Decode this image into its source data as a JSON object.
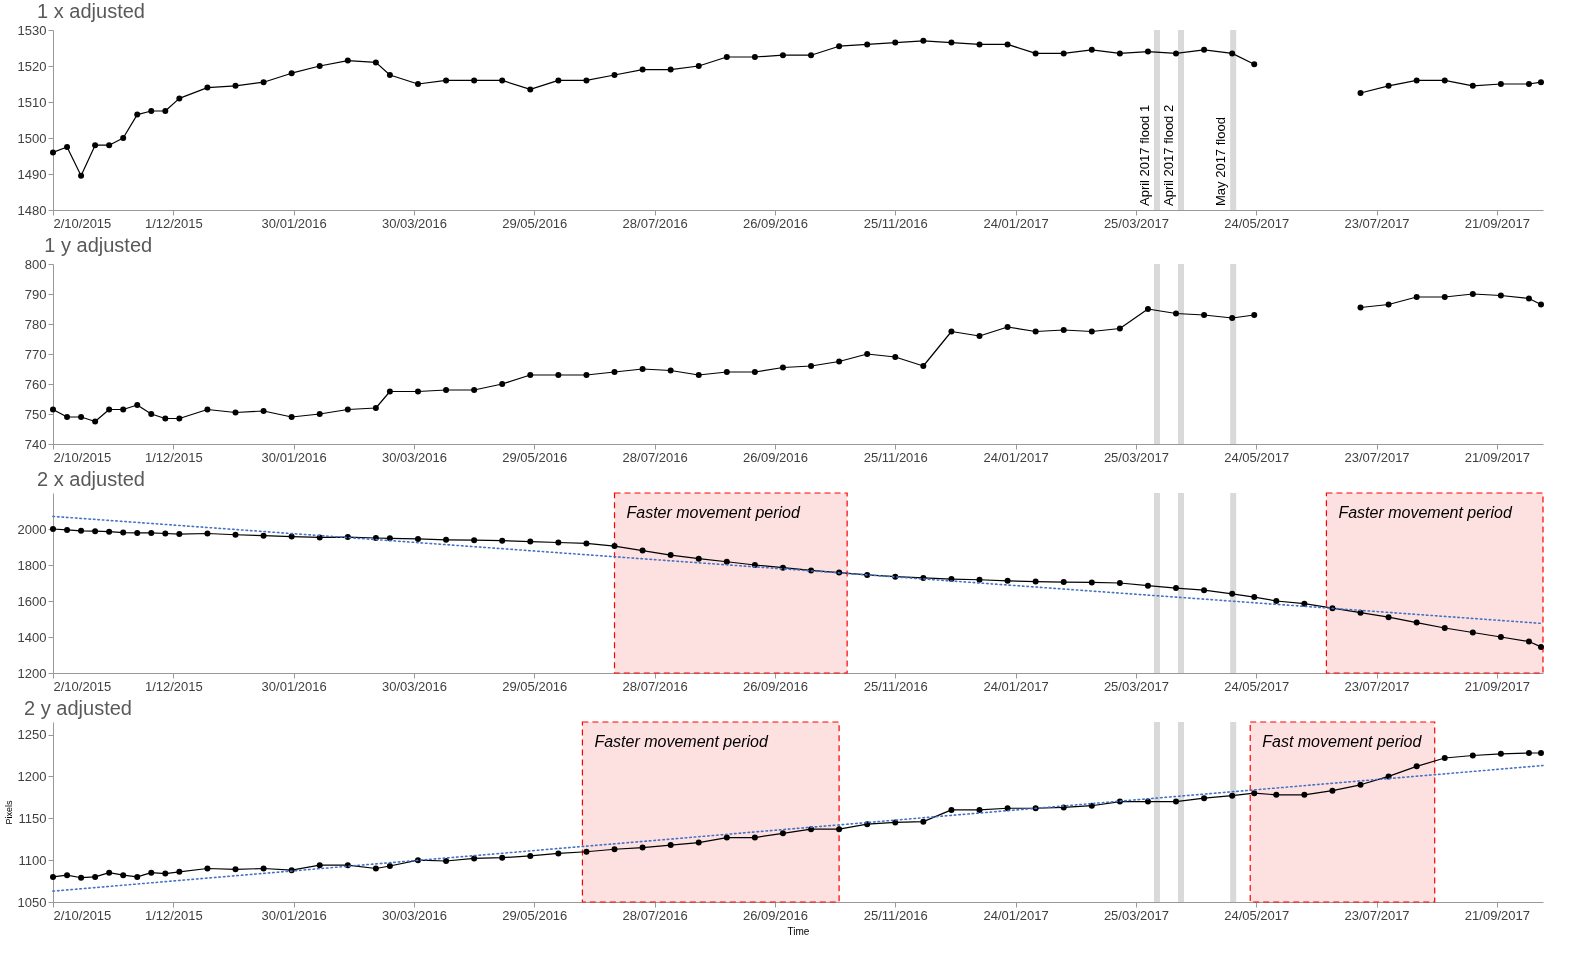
{
  "chart_data": [
    {
      "type": "line",
      "marker": "circle",
      "title": "1 x adjusted",
      "xlim": [
        "2015-10-02",
        "2017-10-14"
      ],
      "ylim": [
        1480,
        1530
      ],
      "yticks": [
        1480,
        1490,
        1500,
        1510,
        1520,
        1530
      ],
      "grid": false,
      "xticks": [
        {
          "value": "2015-10-02",
          "label": "2/10/2015"
        },
        {
          "value": "2015-12-01",
          "label": "1/12/2015"
        },
        {
          "value": "2016-01-30",
          "label": "30/01/2016"
        },
        {
          "value": "2016-03-30",
          "label": "30/03/2016"
        },
        {
          "value": "2016-05-29",
          "label": "29/05/2016"
        },
        {
          "value": "2016-07-28",
          "label": "28/07/2016"
        },
        {
          "value": "2016-09-26",
          "label": "26/09/2016"
        },
        {
          "value": "2016-11-25",
          "label": "25/11/2016"
        },
        {
          "value": "2017-01-24",
          "label": "24/01/2017"
        },
        {
          "value": "2017-03-25",
          "label": "25/03/2017"
        },
        {
          "value": "2017-05-24",
          "label": "24/05/2017"
        },
        {
          "value": "2017-07-23",
          "label": "23/07/2017"
        },
        {
          "value": "2017-09-21",
          "label": "21/09/2017"
        }
      ],
      "x": [
        "2015-10-02",
        "2015-10-09",
        "2015-10-16",
        "2015-10-23",
        "2015-10-30",
        "2015-11-06",
        "2015-11-13",
        "2015-11-20",
        "2015-11-27",
        "2015-12-04",
        "2015-12-18",
        "2016-01-01",
        "2016-01-15",
        "2016-01-29",
        "2016-02-12",
        "2016-02-26",
        "2016-03-11",
        "2016-03-18",
        "2016-04-01",
        "2016-04-15",
        "2016-04-29",
        "2016-05-13",
        "2016-05-27",
        "2016-06-10",
        "2016-06-24",
        "2016-07-08",
        "2016-07-22",
        "2016-08-05",
        "2016-08-19",
        "2016-09-02",
        "2016-09-16",
        "2016-09-30",
        "2016-10-14",
        "2016-10-28",
        "2016-11-11",
        "2016-11-25",
        "2016-12-09",
        "2016-12-23",
        "2017-01-06",
        "2017-01-20",
        "2017-02-03",
        "2017-02-17",
        "2017-03-03",
        "2017-03-17",
        "2017-03-31",
        "2017-04-14",
        "2017-04-28",
        "2017-05-12",
        "2017-05-23",
        "2017-06-14",
        "2017-07-15",
        "2017-07-29",
        "2017-08-12",
        "2017-08-26",
        "2017-09-09",
        "2017-09-23",
        "2017-10-07",
        "2017-10-13"
      ],
      "series": [
        {
          "color": "#000000",
          "values": [
            1496,
            1497.5,
            1489.5,
            1498,
            1498,
            1500,
            1506.5,
            1507.5,
            1507.5,
            1511,
            1514,
            1514.5,
            1515.5,
            1518,
            1520,
            1521.5,
            1521,
            1517.5,
            1515,
            1516,
            1516,
            1516,
            1513.5,
            1516,
            1516,
            1517.5,
            1519,
            1519,
            1520,
            1522.5,
            1522.5,
            1523,
            1523,
            1525.5,
            1526,
            1526.5,
            1527,
            1526.5,
            1526,
            1526,
            1523.5,
            1523.5,
            1524.5,
            1523.5,
            1524,
            1523.5,
            1524.5,
            1523.5,
            1520.5,
            null,
            1512.5,
            1514.5,
            1516,
            1516,
            1514.5,
            1515,
            1515,
            1515.5
          ]
        }
      ],
      "bands": [
        {
          "axis": "x",
          "from": "2017-04-03",
          "to": "2017-04-06",
          "color": "#d9d9d9",
          "label": "April 2017 flood 1"
        },
        {
          "axis": "x",
          "from": "2017-04-15",
          "to": "2017-04-18",
          "color": "#d9d9d9",
          "label": "April 2017 flood 2"
        },
        {
          "axis": "x",
          "from": "2017-05-11",
          "to": "2017-05-14",
          "color": "#d9d9d9",
          "label": "May 2017 flood"
        }
      ]
    },
    {
      "type": "line",
      "marker": "circle",
      "title": "1 y adjusted",
      "xlim": [
        "2015-10-02",
        "2017-10-14"
      ],
      "ylim": [
        740,
        800
      ],
      "yticks": [
        740,
        750,
        760,
        770,
        780,
        790,
        800
      ],
      "grid": false,
      "xticks": [
        {
          "value": "2015-10-02",
          "label": "2/10/2015"
        },
        {
          "value": "2015-12-01",
          "label": "1/12/2015"
        },
        {
          "value": "2016-01-30",
          "label": "30/01/2016"
        },
        {
          "value": "2016-03-30",
          "label": "30/03/2016"
        },
        {
          "value": "2016-05-29",
          "label": "29/05/2016"
        },
        {
          "value": "2016-07-28",
          "label": "28/07/2016"
        },
        {
          "value": "2016-09-26",
          "label": "26/09/2016"
        },
        {
          "value": "2016-11-25",
          "label": "25/11/2016"
        },
        {
          "value": "2017-01-24",
          "label": "24/01/2017"
        },
        {
          "value": "2017-03-25",
          "label": "25/03/2017"
        },
        {
          "value": "2017-05-24",
          "label": "24/05/2017"
        },
        {
          "value": "2017-07-23",
          "label": "23/07/2017"
        },
        {
          "value": "2017-09-21",
          "label": "21/09/2017"
        }
      ],
      "x": [
        "2015-10-02",
        "2015-10-09",
        "2015-10-16",
        "2015-10-23",
        "2015-10-30",
        "2015-11-06",
        "2015-11-13",
        "2015-11-20",
        "2015-11-27",
        "2015-12-04",
        "2015-12-18",
        "2016-01-01",
        "2016-01-15",
        "2016-01-29",
        "2016-02-12",
        "2016-02-26",
        "2016-03-11",
        "2016-03-18",
        "2016-04-01",
        "2016-04-15",
        "2016-04-29",
        "2016-05-13",
        "2016-05-27",
        "2016-06-10",
        "2016-06-24",
        "2016-07-08",
        "2016-07-22",
        "2016-08-05",
        "2016-08-19",
        "2016-09-02",
        "2016-09-16",
        "2016-09-30",
        "2016-10-14",
        "2016-10-28",
        "2016-11-11",
        "2016-11-25",
        "2016-12-09",
        "2016-12-23",
        "2017-01-06",
        "2017-01-20",
        "2017-02-03",
        "2017-02-17",
        "2017-03-03",
        "2017-03-17",
        "2017-03-31",
        "2017-04-14",
        "2017-04-28",
        "2017-05-12",
        "2017-05-23",
        "2017-06-14",
        "2017-07-15",
        "2017-07-29",
        "2017-08-12",
        "2017-08-26",
        "2017-09-09",
        "2017-09-23",
        "2017-10-07",
        "2017-10-13"
      ],
      "series": [
        {
          "color": "#000000",
          "values": [
            751.5,
            749,
            749,
            747.5,
            751.5,
            751.5,
            753,
            750,
            748.5,
            748.5,
            751.5,
            750.5,
            751,
            749,
            750,
            751.5,
            752,
            757.5,
            757.5,
            758,
            758,
            760,
            763,
            763,
            763,
            764,
            765,
            764.5,
            763,
            764,
            764,
            765.5,
            766,
            767.5,
            770,
            769,
            766,
            777.5,
            776,
            779,
            777.5,
            778,
            777.5,
            778.5,
            785,
            783.5,
            783,
            782,
            783,
            null,
            785.5,
            786.5,
            789,
            789,
            790,
            789.5,
            788.5,
            786.5
          ]
        }
      ],
      "bands": [
        {
          "axis": "x",
          "from": "2017-04-03",
          "to": "2017-04-06",
          "color": "#d9d9d9"
        },
        {
          "axis": "x",
          "from": "2017-04-15",
          "to": "2017-04-18",
          "color": "#d9d9d9"
        },
        {
          "axis": "x",
          "from": "2017-05-11",
          "to": "2017-05-14",
          "color": "#d9d9d9"
        }
      ]
    },
    {
      "type": "line",
      "marker": "circle",
      "title": "2 x adjusted",
      "xlim": [
        "2015-10-02",
        "2017-10-14"
      ],
      "ylim": [
        1200,
        2200
      ],
      "yticks": [
        1200,
        1400,
        1600,
        1800,
        2000
      ],
      "grid": false,
      "xticks": [
        {
          "value": "2015-10-02",
          "label": "2/10/2015"
        },
        {
          "value": "2015-12-01",
          "label": "1/12/2015"
        },
        {
          "value": "2016-01-30",
          "label": "30/01/2016"
        },
        {
          "value": "2016-03-30",
          "label": "30/03/2016"
        },
        {
          "value": "2016-05-29",
          "label": "29/05/2016"
        },
        {
          "value": "2016-07-28",
          "label": "28/07/2016"
        },
        {
          "value": "2016-09-26",
          "label": "26/09/2016"
        },
        {
          "value": "2016-11-25",
          "label": "25/11/2016"
        },
        {
          "value": "2017-01-24",
          "label": "24/01/2017"
        },
        {
          "value": "2017-03-25",
          "label": "25/03/2017"
        },
        {
          "value": "2017-05-24",
          "label": "24/05/2017"
        },
        {
          "value": "2017-07-23",
          "label": "23/07/2017"
        },
        {
          "value": "2017-09-21",
          "label": "21/09/2017"
        }
      ],
      "x": [
        "2015-10-02",
        "2015-10-09",
        "2015-10-16",
        "2015-10-23",
        "2015-10-30",
        "2015-11-06",
        "2015-11-13",
        "2015-11-20",
        "2015-11-27",
        "2015-12-04",
        "2015-12-18",
        "2016-01-01",
        "2016-01-15",
        "2016-01-29",
        "2016-02-12",
        "2016-02-26",
        "2016-03-11",
        "2016-03-18",
        "2016-04-01",
        "2016-04-15",
        "2016-04-29",
        "2016-05-13",
        "2016-05-27",
        "2016-06-10",
        "2016-06-24",
        "2016-07-08",
        "2016-07-22",
        "2016-08-05",
        "2016-08-19",
        "2016-09-02",
        "2016-09-16",
        "2016-09-30",
        "2016-10-14",
        "2016-10-28",
        "2016-11-11",
        "2016-11-25",
        "2016-12-09",
        "2016-12-23",
        "2017-01-06",
        "2017-01-20",
        "2017-02-03",
        "2017-02-17",
        "2017-03-03",
        "2017-03-17",
        "2017-03-31",
        "2017-04-14",
        "2017-04-28",
        "2017-05-12",
        "2017-05-23",
        "2017-06-03",
        "2017-06-17",
        "2017-07-01",
        "2017-07-15",
        "2017-07-29",
        "2017-08-12",
        "2017-08-26",
        "2017-09-09",
        "2017-09-23",
        "2017-10-07",
        "2017-10-13"
      ],
      "series": [
        {
          "color": "#000000",
          "values": [
            2000,
            1995,
            1990,
            1988,
            1985,
            1980,
            1978,
            1978,
            1975,
            1972,
            1975,
            1968,
            1963,
            1958,
            1953,
            1955,
            1950,
            1948,
            1945,
            1940,
            1938,
            1935,
            1930,
            1925,
            1920,
            1905,
            1880,
            1855,
            1835,
            1818,
            1800,
            1785,
            1770,
            1758,
            1745,
            1735,
            1728,
            1722,
            1718,
            1712,
            1708,
            1705,
            1703,
            1700,
            1685,
            1672,
            1660,
            1640,
            1622,
            1600,
            1585,
            1560,
            1535,
            1510,
            1480,
            1450,
            1425,
            1400,
            1375,
            1345
          ]
        },
        {
          "type": "line",
          "color": "#4472c4",
          "marker": "none",
          "line_style": "dotted",
          "x": [
            "2015-10-02",
            "2017-10-14"
          ],
          "values": [
            2070,
            1475
          ]
        }
      ],
      "bands": [
        {
          "axis": "x",
          "from": "2016-07-08",
          "to": "2016-11-01",
          "color": "#fde0e0",
          "label": "Faster movement period"
        },
        {
          "axis": "x",
          "from": "2017-04-03",
          "to": "2017-04-06",
          "color": "#d9d9d9"
        },
        {
          "axis": "x",
          "from": "2017-04-15",
          "to": "2017-04-18",
          "color": "#d9d9d9"
        },
        {
          "axis": "x",
          "from": "2017-05-11",
          "to": "2017-05-14",
          "color": "#d9d9d9"
        },
        {
          "axis": "x",
          "from": "2017-06-28",
          "to": "2017-10-14",
          "color": "#fde0e0",
          "label": "Faster movement period"
        }
      ]
    },
    {
      "type": "line",
      "marker": "circle",
      "title": "2 y adjusted",
      "xlabel": "Time",
      "ylabel": "Pixels",
      "xlim": [
        "2015-10-02",
        "2017-10-14"
      ],
      "ylim": [
        1050,
        1265
      ],
      "yticks": [
        1050,
        1100,
        1150,
        1200,
        1250
      ],
      "grid": false,
      "xticks": [
        {
          "value": "2015-10-02",
          "label": "2/10/2015"
        },
        {
          "value": "2015-12-01",
          "label": "1/12/2015"
        },
        {
          "value": "2016-01-30",
          "label": "30/01/2016"
        },
        {
          "value": "2016-03-30",
          "label": "30/03/2016"
        },
        {
          "value": "2016-05-29",
          "label": "29/05/2016"
        },
        {
          "value": "2016-07-28",
          "label": "28/07/2016"
        },
        {
          "value": "2016-09-26",
          "label": "26/09/2016"
        },
        {
          "value": "2016-11-25",
          "label": "25/11/2016"
        },
        {
          "value": "2017-01-24",
          "label": "24/01/2017"
        },
        {
          "value": "2017-03-25",
          "label": "25/03/2017"
        },
        {
          "value": "2017-05-24",
          "label": "24/05/2017"
        },
        {
          "value": "2017-07-23",
          "label": "23/07/2017"
        },
        {
          "value": "2017-09-21",
          "label": "21/09/2017"
        }
      ],
      "x": [
        "2015-10-02",
        "2015-10-09",
        "2015-10-16",
        "2015-10-23",
        "2015-10-30",
        "2015-11-06",
        "2015-11-13",
        "2015-11-20",
        "2015-11-27",
        "2015-12-04",
        "2015-12-18",
        "2016-01-01",
        "2016-01-15",
        "2016-01-29",
        "2016-02-12",
        "2016-02-26",
        "2016-03-11",
        "2016-03-18",
        "2016-04-01",
        "2016-04-15",
        "2016-04-29",
        "2016-05-13",
        "2016-05-27",
        "2016-06-10",
        "2016-06-24",
        "2016-07-08",
        "2016-07-22",
        "2016-08-05",
        "2016-08-19",
        "2016-09-02",
        "2016-09-16",
        "2016-09-30",
        "2016-10-14",
        "2016-10-28",
        "2016-11-11",
        "2016-11-25",
        "2016-12-09",
        "2016-12-23",
        "2017-01-06",
        "2017-01-20",
        "2017-02-03",
        "2017-02-17",
        "2017-03-03",
        "2017-03-17",
        "2017-03-31",
        "2017-04-14",
        "2017-04-28",
        "2017-05-12",
        "2017-05-23",
        "2017-06-03",
        "2017-06-17",
        "2017-07-01",
        "2017-07-15",
        "2017-07-29",
        "2017-08-12",
        "2017-08-26",
        "2017-09-09",
        "2017-09-23",
        "2017-10-07",
        "2017-10-13"
      ],
      "series": [
        {
          "color": "#000000",
          "values": [
            1080,
            1082,
            1079,
            1080,
            1085,
            1082,
            1080,
            1085,
            1084,
            1086,
            1090,
            1089,
            1090,
            1088,
            1094,
            1094,
            1090,
            1093,
            1100,
            1099,
            1102,
            1103,
            1105,
            1108,
            1110,
            1113,
            1115,
            1118,
            1121,
            1127,
            1127,
            1132,
            1137,
            1137,
            1143,
            1145,
            1146,
            1160,
            1160,
            1162,
            1162,
            1163,
            1165,
            1170,
            1170,
            1170,
            1174,
            1177,
            1180,
            1178,
            1178,
            1183,
            1190,
            1200,
            1212,
            1222,
            1225,
            1227,
            1228,
            1228
          ]
        },
        {
          "type": "line",
          "color": "#4472c4",
          "marker": "none",
          "line_style": "dotted",
          "x": [
            "2015-10-02",
            "2017-10-14"
          ],
          "values": [
            1063,
            1213
          ]
        }
      ],
      "bands": [
        {
          "axis": "x",
          "from": "2016-06-22",
          "to": "2016-10-28",
          "color": "#fde0e0",
          "label": "Faster movement period"
        },
        {
          "axis": "x",
          "from": "2017-04-03",
          "to": "2017-04-06",
          "color": "#d9d9d9"
        },
        {
          "axis": "x",
          "from": "2017-04-15",
          "to": "2017-04-18",
          "color": "#d9d9d9"
        },
        {
          "axis": "x",
          "from": "2017-05-11",
          "to": "2017-05-14",
          "color": "#d9d9d9"
        },
        {
          "axis": "x",
          "from": "2017-05-21",
          "to": "2017-08-21",
          "color": "#fde0e0",
          "label": "Fast movement period"
        }
      ]
    }
  ]
}
